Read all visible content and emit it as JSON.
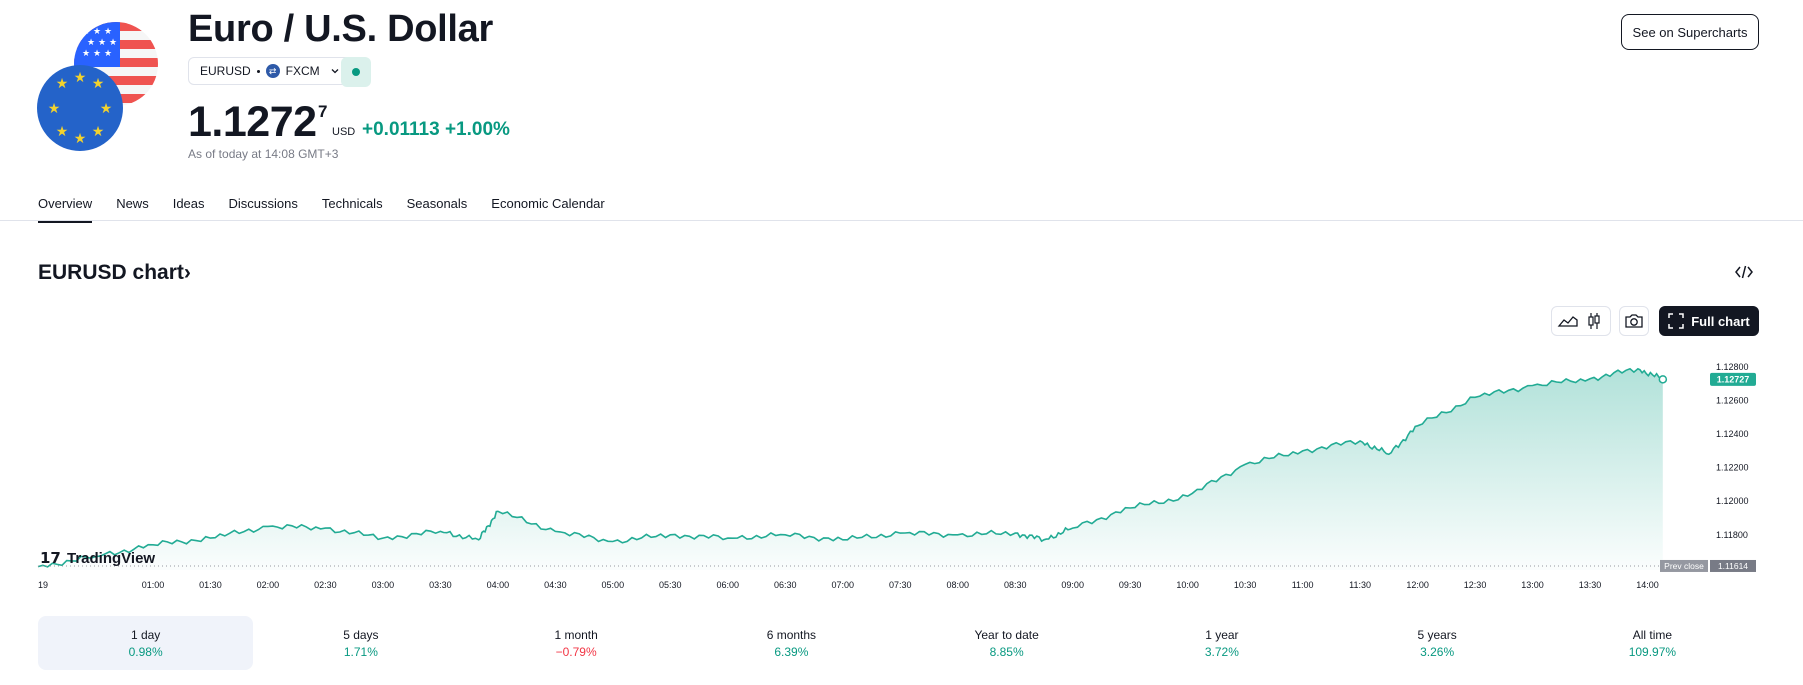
{
  "header": {
    "title": "Euro / U.S. Dollar",
    "symbol": "EURUSD",
    "exchange": "FXCM",
    "exchange_logo_icon": "fxcm-logo-icon",
    "status_color": "#089981",
    "price_main": "1.1272",
    "price_sup": "7",
    "currency": "USD",
    "change": "+0.01113 +1.00%",
    "as_of": "As of today at 14:08 GMT+3",
    "supercharts_label": "See on Supercharts"
  },
  "tabs": [
    {
      "label": "Overview",
      "active": true
    },
    {
      "label": "News"
    },
    {
      "label": "Ideas"
    },
    {
      "label": "Discussions"
    },
    {
      "label": "Technicals"
    },
    {
      "label": "Seasonals"
    },
    {
      "label": "Economic Calendar"
    }
  ],
  "chart_section": {
    "title": "EURUSD chart›",
    "full_chart_label": "Full chart",
    "watermark": "TradingView",
    "accent": "#22ab94"
  },
  "chart_data": {
    "type": "area",
    "x_tick_labels": [
      "19",
      "01:00",
      "01:30",
      "02:00",
      "02:30",
      "03:00",
      "03:30",
      "04:00",
      "04:30",
      "05:00",
      "05:30",
      "06:00",
      "06:30",
      "07:00",
      "07:30",
      "08:00",
      "08:30",
      "09:00",
      "09:30",
      "10:00",
      "10:30",
      "11:00",
      "11:30",
      "12:00",
      "12:30",
      "13:00",
      "13:30",
      "14:00"
    ],
    "y_tick_labels": [
      "1.12800",
      "1.12600",
      "1.12400",
      "1.12200",
      "1.12000",
      "1.11800"
    ],
    "ylim": [
      1.1159,
      1.1289
    ],
    "x": [
      "00:00",
      "00:30",
      "01:00",
      "01:30",
      "02:00",
      "02:30",
      "03:00",
      "03:30",
      "03:50",
      "04:00",
      "04:30",
      "05:00",
      "05:30",
      "06:00",
      "06:30",
      "07:00",
      "07:30",
      "08:00",
      "08:30",
      "08:45",
      "09:00",
      "09:30",
      "10:00",
      "10:30",
      "11:00",
      "11:30",
      "11:45",
      "12:00",
      "12:30",
      "13:00",
      "13:30",
      "13:55",
      "14:08"
    ],
    "series": [
      {
        "values": [
          1.1161,
          1.1167,
          1.1174,
          1.1178,
          1.1185,
          1.1184,
          1.1178,
          1.1182,
          1.1177,
          1.1194,
          1.1182,
          1.1176,
          1.118,
          1.1178,
          1.118,
          1.1177,
          1.1181,
          1.118,
          1.1181,
          1.1177,
          1.1184,
          1.1196,
          1.1203,
          1.1222,
          1.123,
          1.1236,
          1.1228,
          1.1245,
          1.1262,
          1.1269,
          1.1273,
          1.1279,
          1.12727
        ]
      }
    ],
    "last_price_label": "1.12727",
    "prev_close_label": "Prev close",
    "prev_close_value": "1.11614",
    "prev_close": 1.11614
  },
  "periods": [
    {
      "label": "1 day",
      "value": "0.98%",
      "sign": "pos",
      "active": true
    },
    {
      "label": "5 days",
      "value": "1.71%",
      "sign": "pos"
    },
    {
      "label": "1 month",
      "value": "−0.79%",
      "sign": "neg"
    },
    {
      "label": "6 months",
      "value": "6.39%",
      "sign": "pos"
    },
    {
      "label": "Year to date",
      "value": "8.85%",
      "sign": "pos"
    },
    {
      "label": "1 year",
      "value": "3.72%",
      "sign": "pos"
    },
    {
      "label": "5 years",
      "value": "3.26%",
      "sign": "pos"
    },
    {
      "label": "All time",
      "value": "109.97%",
      "sign": "pos"
    }
  ]
}
